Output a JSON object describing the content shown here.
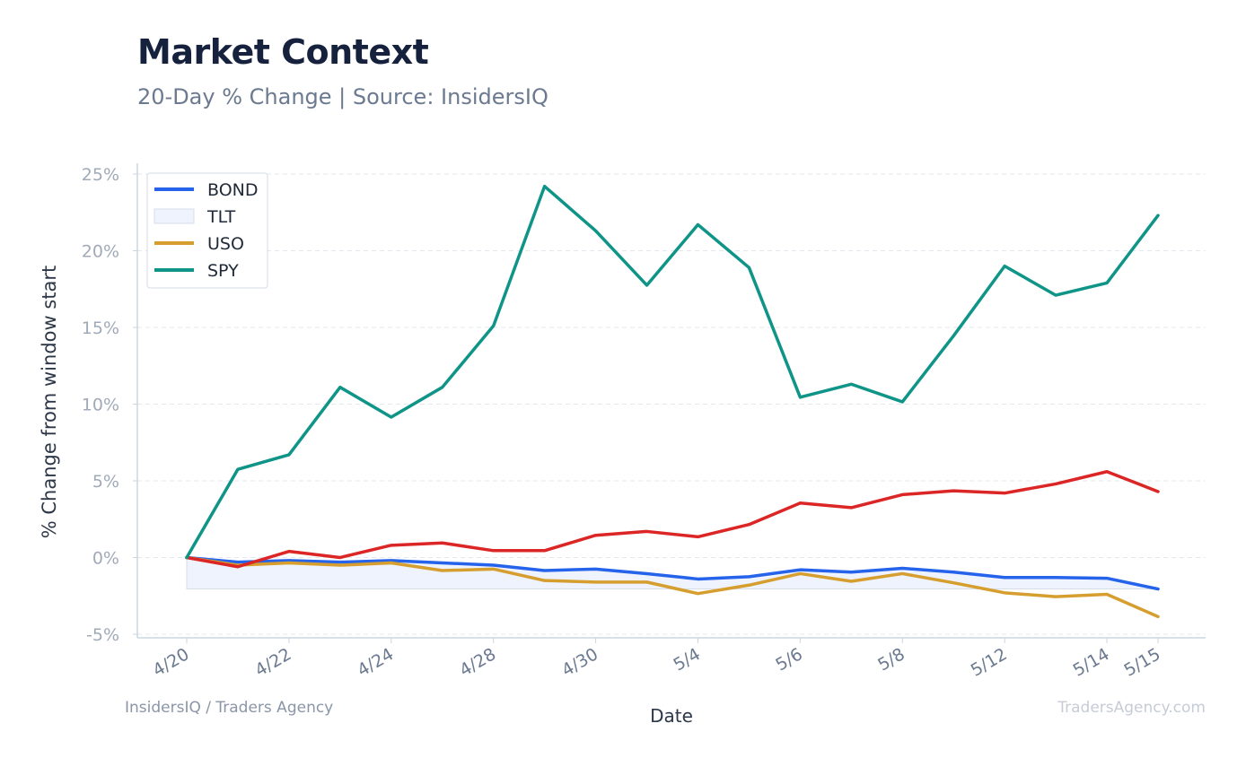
{
  "header": {
    "title": "Market Context",
    "subtitle": "20-Day % Change | Source: InsidersIQ"
  },
  "footer": {
    "left": "InsidersIQ / Traders Agency",
    "right": "TradersAgency.com"
  },
  "chart_data": {
    "type": "line",
    "xlabel": "Date",
    "ylabel": "% Change from window start",
    "ylim": [
      -5,
      25
    ],
    "yticks": [
      -5,
      0,
      5,
      10,
      15,
      20,
      25
    ],
    "ytick_labels": [
      "-5%",
      "0%",
      "5%",
      "10%",
      "15%",
      "20%",
      "25%"
    ],
    "x": [
      "4/20",
      "4/21",
      "4/22",
      "4/23",
      "4/24",
      "4/27",
      "4/28",
      "4/29",
      "4/30",
      "5/1",
      "5/4",
      "5/5",
      "5/6",
      "5/7",
      "5/8",
      "5/11",
      "5/12",
      "5/13",
      "5/14",
      "5/15"
    ],
    "xtick_labels": [
      "4/20",
      "4/22",
      "4/24",
      "4/28",
      "4/30",
      "5/4",
      "5/6",
      "5/8",
      "5/12",
      "5/14",
      "5/15"
    ],
    "legend_position": "top-left",
    "grid": true,
    "series": [
      {
        "name": "BOND",
        "color": "#2563eb",
        "values": [
          0,
          -0.3,
          -0.2,
          -0.3,
          -0.2,
          -0.35,
          -0.5,
          -0.85,
          -0.75,
          -1.05,
          -1.4,
          -1.25,
          -0.8,
          -0.95,
          -0.7,
          -0.95,
          -1.3,
          -1.3,
          -1.35,
          -2.05
        ]
      },
      {
        "name": "TLT",
        "color": "#2563eb",
        "style": "area-fill",
        "values": [
          0,
          -0.3,
          -0.2,
          -0.3,
          -0.2,
          -0.35,
          -0.5,
          -0.85,
          -0.75,
          -1.05,
          -1.4,
          -1.25,
          -0.8,
          -0.95,
          -0.7,
          -0.95,
          -1.3,
          -1.3,
          -1.35,
          -2.05
        ]
      },
      {
        "name": "USO",
        "color": "#d69e2e",
        "values": [
          0,
          -0.5,
          -0.35,
          -0.5,
          -0.35,
          -0.85,
          -0.75,
          -1.5,
          -1.6,
          -1.6,
          -2.35,
          -1.8,
          -1.05,
          -1.55,
          -1.05,
          -1.65,
          -2.3,
          -2.55,
          -2.4,
          -3.85
        ]
      },
      {
        "name": "",
        "color": "#dc2626",
        "values": [
          0,
          -0.6,
          0.4,
          0.0,
          0.8,
          0.95,
          0.45,
          0.45,
          1.45,
          1.7,
          1.35,
          2.15,
          3.55,
          3.25,
          4.1,
          4.35,
          4.2,
          4.8,
          5.6,
          4.3
        ]
      },
      {
        "name": "SPY",
        "color": "#0f9488",
        "values": [
          0,
          5.75,
          6.7,
          11.1,
          9.15,
          11.1,
          15.1,
          24.2,
          21.3,
          17.75,
          21.7,
          18.9,
          10.45,
          11.3,
          10.15,
          14.45,
          19.0,
          17.1,
          17.9,
          22.3
        ]
      }
    ]
  }
}
